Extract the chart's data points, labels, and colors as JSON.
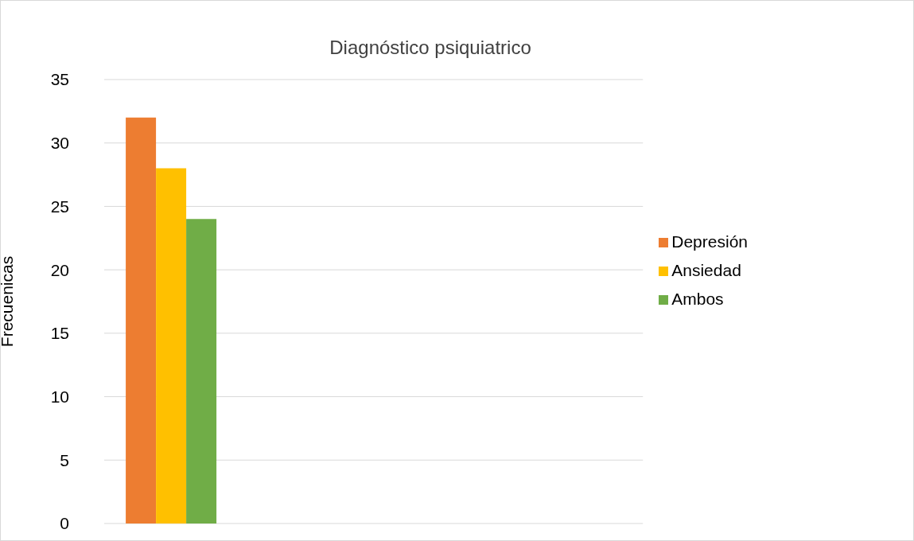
{
  "chart_data": {
    "type": "bar",
    "title": "Diagnóstico psiquiatrico",
    "ylabel": "Frecuenicas",
    "categories": [
      null,
      null,
      null,
      null
    ],
    "series": [
      {
        "name": "Depresión",
        "color": "#ed7d31",
        "values": [
          32,
          null,
          null,
          null
        ]
      },
      {
        "name": "Ansiedad",
        "color": "#ffc000",
        "values": [
          28,
          null,
          null,
          null
        ]
      },
      {
        "name": "Ambos",
        "color": "#70ad47",
        "values": [
          24,
          null,
          null,
          null
        ]
      }
    ],
    "ylim": [
      0,
      35
    ],
    "yticks": [
      0,
      5,
      10,
      15,
      20,
      25,
      30,
      35
    ],
    "grid": "y",
    "legend": "right"
  }
}
